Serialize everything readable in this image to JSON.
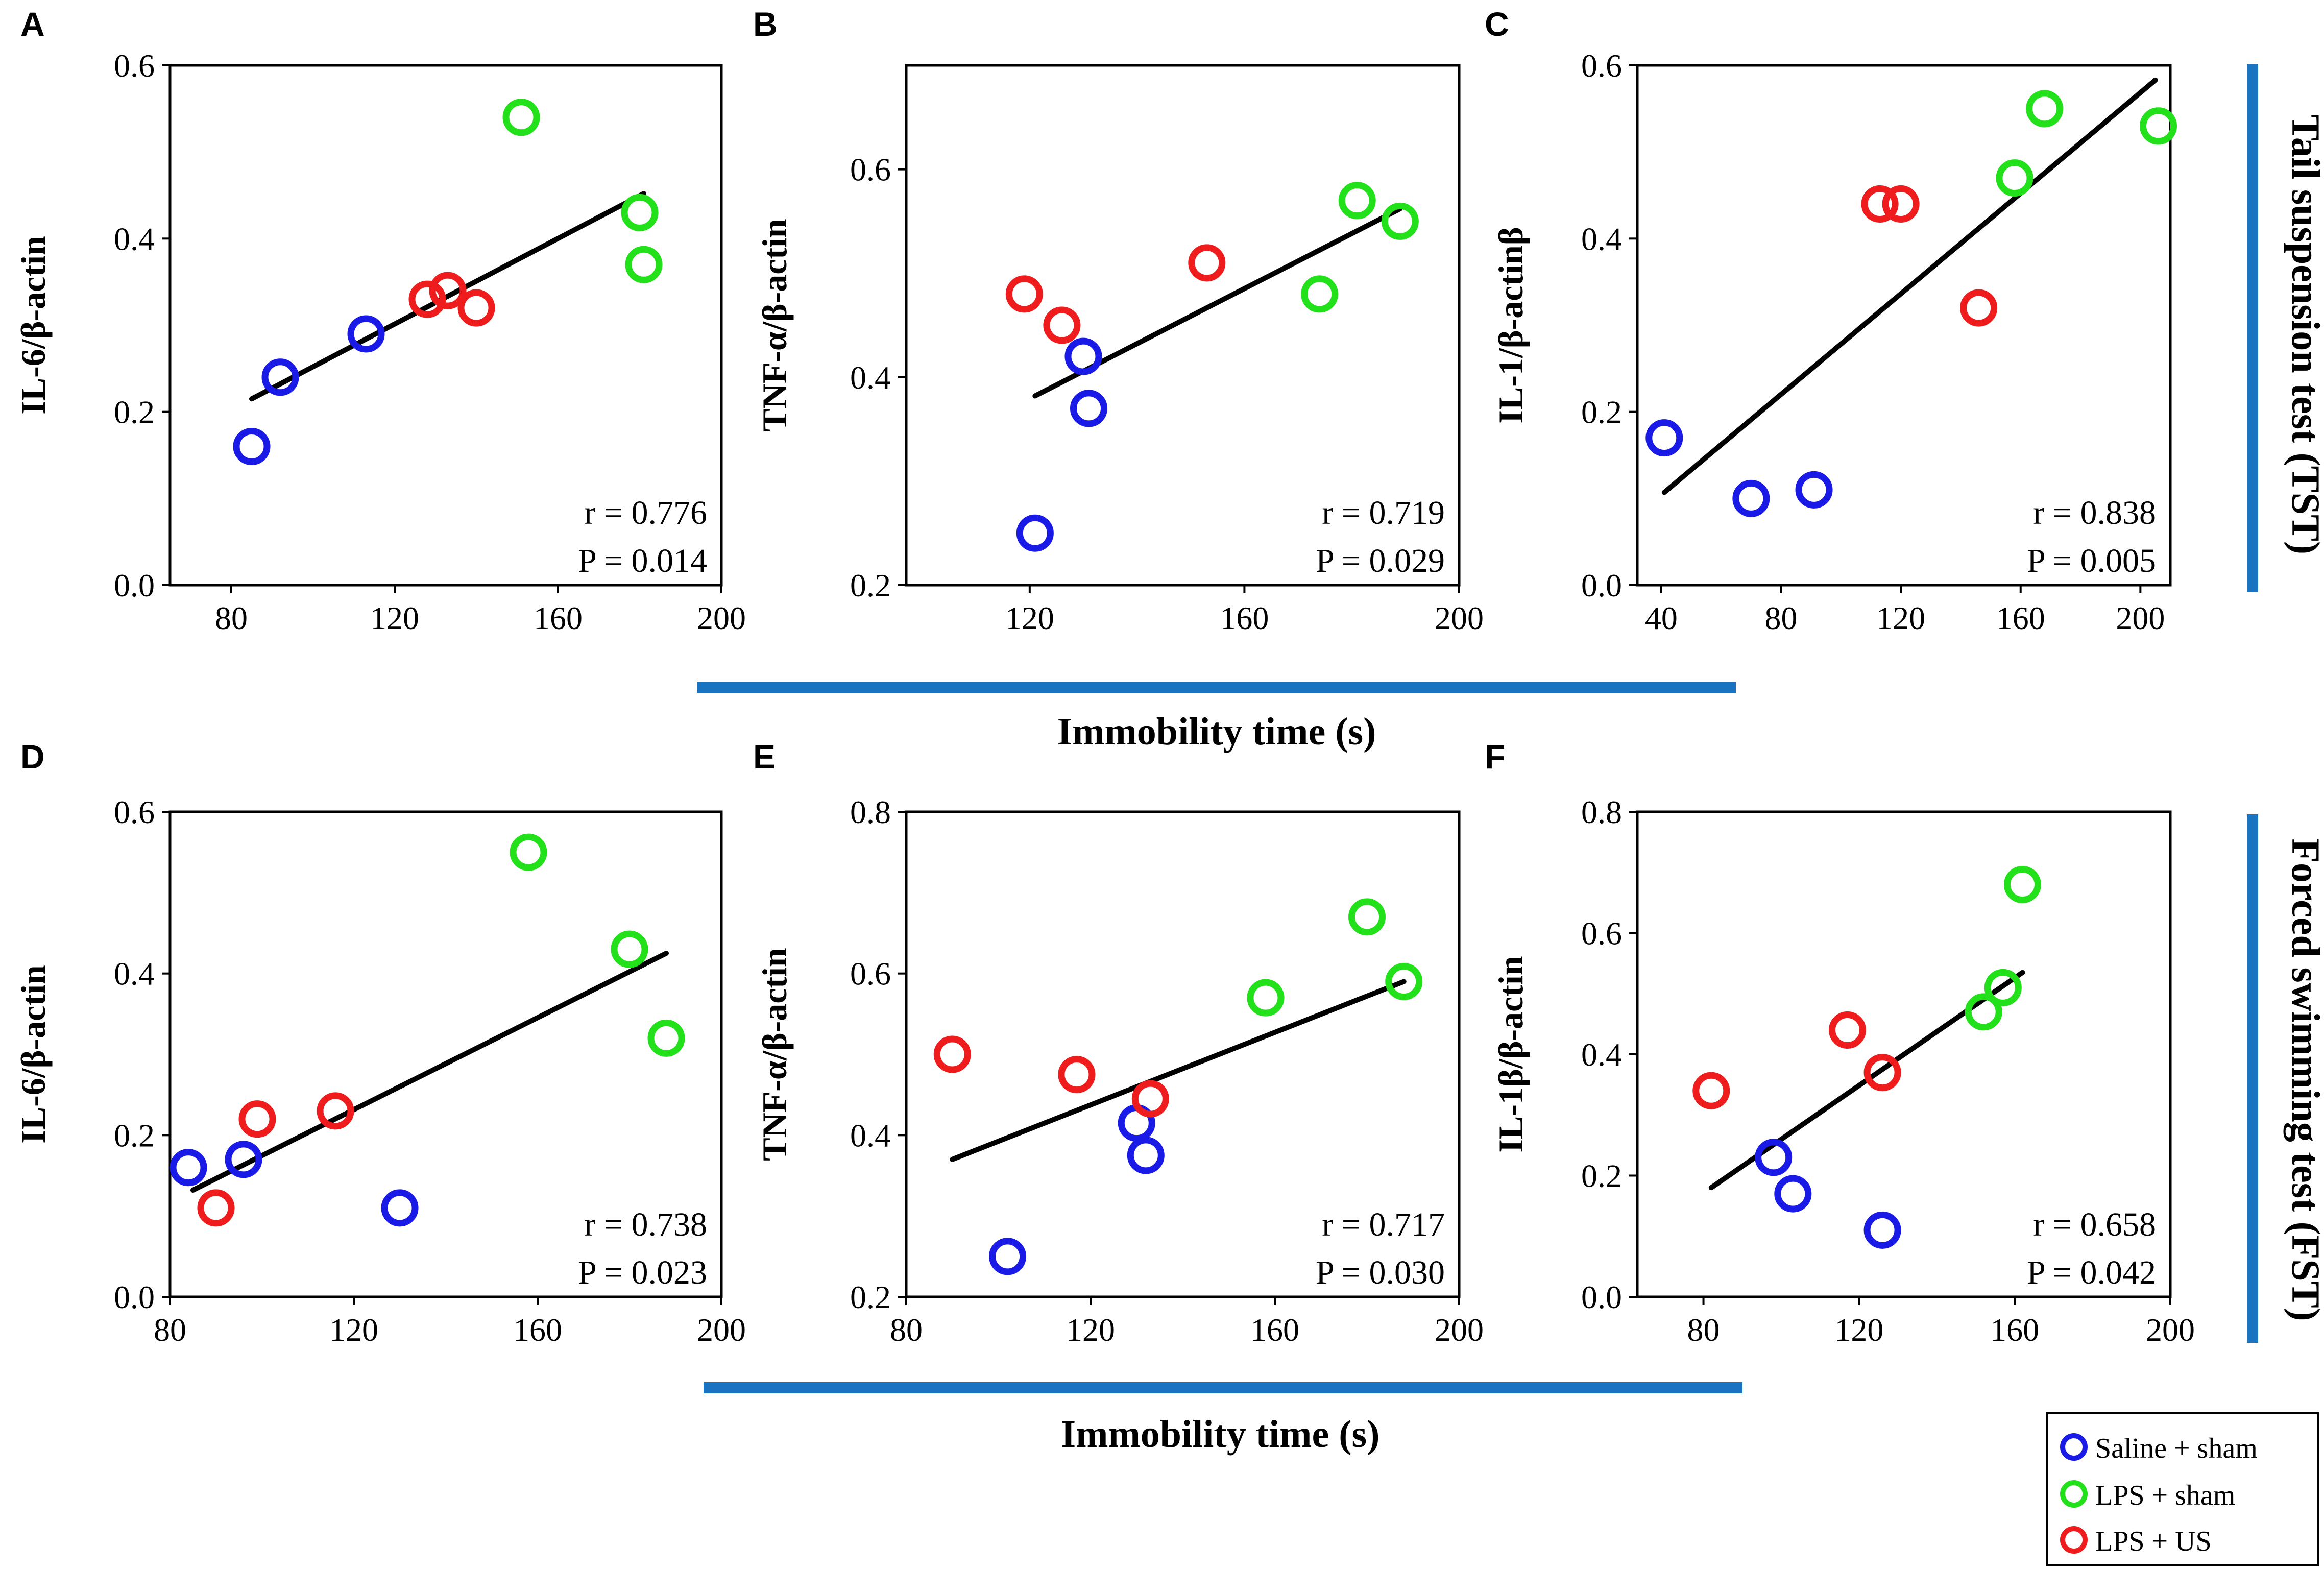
{
  "figure": {
    "colors": {
      "saline_sham": "#1a1ae6",
      "lps_sham": "#22e01a",
      "lps_us": "#ee1c1c",
      "bar": "#1a73c0",
      "line": "#000000"
    },
    "side_labels": [
      "Tail suspension test (TST)",
      "Forced swimming test (FST)"
    ],
    "xlabels": [
      "Immobility time (s)",
      "Immobility time (s)"
    ],
    "legend": [
      {
        "label": "Saline + sham",
        "group": "saline_sham"
      },
      {
        "label": "LPS + sham",
        "group": "lps_sham"
      },
      {
        "label": "LPS + US",
        "group": "lps_us"
      }
    ]
  },
  "chart_data": [
    {
      "type": "scatter",
      "panel": "A",
      "ylabel": "IL-6/β-actin",
      "xlabel": "Immobility time (s)",
      "xlim": [
        65,
        200
      ],
      "ylim": [
        0.0,
        0.6
      ],
      "xticks": [
        "80",
        "120",
        "160",
        "200"
      ],
      "yticks": [
        "0.0",
        "0.2",
        "0.4",
        "0.6"
      ],
      "series": [
        {
          "name": "Saline + sham",
          "group": "saline_sham",
          "x": [
            85,
            92,
            113
          ],
          "y": [
            0.16,
            0.24,
            0.29
          ]
        },
        {
          "name": "LPS + sham",
          "group": "lps_sham",
          "x": [
            151,
            180,
            181
          ],
          "y": [
            0.54,
            0.43,
            0.37
          ]
        },
        {
          "name": "LPS + US",
          "group": "lps_us",
          "x": [
            128,
            133,
            140
          ],
          "y": [
            0.33,
            0.34,
            0.32
          ]
        }
      ],
      "fit": {
        "x": [
          85,
          181
        ],
        "y": [
          0.215,
          0.452
        ]
      },
      "r_text": "r = 0.776",
      "p_text": "P = 0.014"
    },
    {
      "type": "scatter",
      "panel": "B",
      "ylabel": "TNF-α/β-actin",
      "xlabel": "Immobility time (s)",
      "xlim": [
        97,
        200
      ],
      "ylim": [
        0.2,
        0.7
      ],
      "xticks": [
        "120",
        "160",
        "200"
      ],
      "yticks": [
        "0.2",
        "0.4",
        "0.6"
      ],
      "series": [
        {
          "name": "Saline + sham",
          "group": "saline_sham",
          "x": [
            121,
            130,
            131
          ],
          "y": [
            0.25,
            0.42,
            0.37
          ]
        },
        {
          "name": "LPS + sham",
          "group": "lps_sham",
          "x": [
            174,
            181,
            189
          ],
          "y": [
            0.48,
            0.57,
            0.55
          ]
        },
        {
          "name": "LPS + US",
          "group": "lps_us",
          "x": [
            119,
            126,
            153
          ],
          "y": [
            0.48,
            0.45,
            0.51
          ]
        }
      ],
      "fit": {
        "x": [
          121,
          189
        ],
        "y": [
          0.382,
          0.562
        ]
      },
      "r_text": "r = 0.719",
      "p_text": "P = 0.029"
    },
    {
      "type": "scatter",
      "panel": "C",
      "ylabel": "IL-1/β-actinβ",
      "xlabel": "Immobility time (s)",
      "xlim": [
        32,
        210
      ],
      "ylim": [
        0.0,
        0.6
      ],
      "xticks": [
        "40",
        "80",
        "120",
        "160",
        "200"
      ],
      "yticks": [
        "0.0",
        "0.2",
        "0.4",
        "0.6"
      ],
      "series": [
        {
          "name": "Saline + sham",
          "group": "saline_sham",
          "x": [
            41,
            70,
            91
          ],
          "y": [
            0.17,
            0.1,
            0.11
          ]
        },
        {
          "name": "LPS + sham",
          "group": "lps_sham",
          "x": [
            158,
            168,
            206
          ],
          "y": [
            0.47,
            0.55,
            0.53
          ]
        },
        {
          "name": "LPS + US",
          "group": "lps_us",
          "x": [
            113,
            120,
            146
          ],
          "y": [
            0.44,
            0.44,
            0.32
          ]
        }
      ],
      "fit": {
        "x": [
          41,
          205
        ],
        "y": [
          0.107,
          0.583
        ]
      },
      "r_text": "r = 0.838",
      "p_text": "P = 0.005"
    },
    {
      "type": "scatter",
      "panel": "D",
      "ylabel": "IL-6/β-actin",
      "xlabel": "Immobility time (s)",
      "xlim": [
        80,
        200
      ],
      "ylim": [
        0.0,
        0.6
      ],
      "xticks": [
        "80",
        "120",
        "160",
        "200"
      ],
      "yticks": [
        "0.0",
        "0.2",
        "0.4",
        "0.6"
      ],
      "series": [
        {
          "name": "Saline + sham",
          "group": "saline_sham",
          "x": [
            84,
            96,
            130
          ],
          "y": [
            0.16,
            0.17,
            0.11
          ]
        },
        {
          "name": "LPS + sham",
          "group": "lps_sham",
          "x": [
            158,
            180,
            188
          ],
          "y": [
            0.55,
            0.43,
            0.32
          ]
        },
        {
          "name": "LPS + US",
          "group": "lps_us",
          "x": [
            90,
            99,
            116
          ],
          "y": [
            0.11,
            0.22,
            0.23
          ]
        }
      ],
      "fit": {
        "x": [
          85,
          188
        ],
        "y": [
          0.132,
          0.425
        ]
      },
      "r_text": "r = 0.738",
      "p_text": "P = 0.023"
    },
    {
      "type": "scatter",
      "panel": "E",
      "ylabel": "TNF-α/β-actin",
      "xlabel": "Immobility time (s)",
      "xlim": [
        80,
        200
      ],
      "ylim": [
        0.2,
        0.8
      ],
      "xticks": [
        "80",
        "120",
        "160",
        "200"
      ],
      "yticks": [
        "0.2",
        "0.4",
        "0.6",
        "0.8"
      ],
      "series": [
        {
          "name": "Saline + sham",
          "group": "saline_sham",
          "x": [
            102,
            130,
            132
          ],
          "y": [
            0.25,
            0.415,
            0.375
          ]
        },
        {
          "name": "LPS + sham",
          "group": "lps_sham",
          "x": [
            158,
            180,
            188
          ],
          "y": [
            0.57,
            0.67,
            0.59
          ]
        },
        {
          "name": "LPS + US",
          "group": "lps_us",
          "x": [
            90,
            117,
            133
          ],
          "y": [
            0.5,
            0.475,
            0.445
          ]
        }
      ],
      "fit": {
        "x": [
          90,
          188
        ],
        "y": [
          0.37,
          0.59
        ]
      },
      "r_text": "r = 0.717",
      "p_text": "P = 0.030"
    },
    {
      "type": "scatter",
      "panel": "F",
      "ylabel": "IL-1β/β-actin",
      "xlabel": "Immobility time (s)",
      "xlim": [
        63,
        200
      ],
      "ylim": [
        0.0,
        0.8
      ],
      "xticks": [
        "80",
        "120",
        "160",
        "200"
      ],
      "yticks": [
        "0.0",
        "0.2",
        "0.4",
        "0.6",
        "0.8"
      ],
      "series": [
        {
          "name": "Saline + sham",
          "group": "saline_sham",
          "x": [
            98,
            103,
            126
          ],
          "y": [
            0.23,
            0.17,
            0.11
          ]
        },
        {
          "name": "LPS + sham",
          "group": "lps_sham",
          "x": [
            152,
            157,
            162
          ],
          "y": [
            0.47,
            0.51,
            0.68
          ]
        },
        {
          "name": "LPS + US",
          "group": "lps_us",
          "x": [
            82,
            117,
            126
          ],
          "y": [
            0.34,
            0.44,
            0.37
          ]
        }
      ],
      "fit": {
        "x": [
          82,
          162
        ],
        "y": [
          0.18,
          0.535
        ]
      },
      "r_text": "r = 0.658",
      "p_text": "P = 0.042"
    }
  ]
}
